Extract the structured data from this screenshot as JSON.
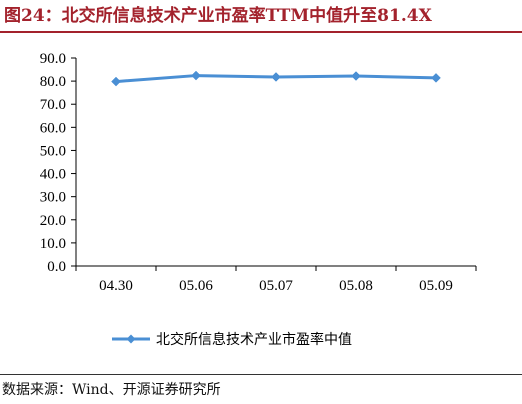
{
  "header": {
    "title": "图24：北交所信息技术产业市盈率TTM中值升至81.4X"
  },
  "footer": {
    "source": "数据来源：Wind、开源证券研究所"
  },
  "colors": {
    "title": "#a3222c",
    "series": "#4a8fd4"
  },
  "chart_data": {
    "type": "line",
    "title": "",
    "xlabel": "",
    "ylabel": "",
    "categories": [
      "04.30",
      "05.06",
      "05.07",
      "05.08",
      "05.09"
    ],
    "series": [
      {
        "name": "北交所信息技术产业市盈率中值",
        "values": [
          79.8,
          82.4,
          81.8,
          82.2,
          81.4
        ]
      }
    ],
    "ylim": [
      0,
      90
    ],
    "yticks": [
      "0.0",
      "10.0",
      "20.0",
      "30.0",
      "40.0",
      "50.0",
      "60.0",
      "70.0",
      "80.0",
      "90.0"
    ],
    "grid": false,
    "legend": "bottom",
    "marker": "diamond"
  }
}
